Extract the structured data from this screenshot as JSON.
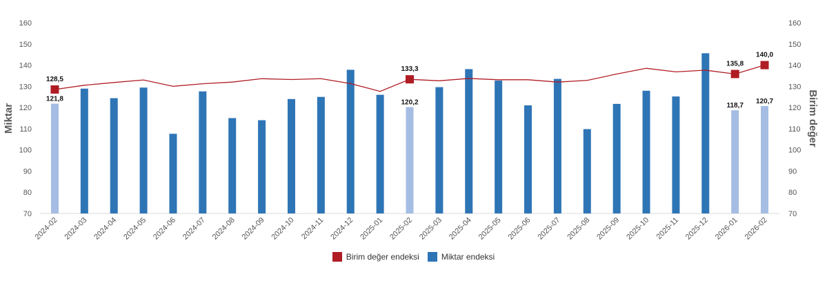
{
  "chart_data": {
    "type": "bar+line",
    "categories": [
      "2024-02",
      "2024-03",
      "2024-04",
      "2024-05",
      "2024-06",
      "2024-07",
      "2024-08",
      "2024-09",
      "2024-10",
      "2024-11",
      "2024-12",
      "2025-01",
      "2025-02",
      "2025-03",
      "2025-04",
      "2025-05",
      "2025-06",
      "2025-07",
      "2025-08",
      "2025-09",
      "2025-10",
      "2025-11",
      "2025-12",
      "2026-01",
      "2026-02"
    ],
    "ylabel": "Miktar",
    "y2label": "Birim değer",
    "ylim": [
      70,
      160
    ],
    "y2lim": [
      70,
      160
    ],
    "yticks": [
      "70",
      "80",
      "90",
      "100",
      "110",
      "120",
      "130",
      "140",
      "150",
      "160"
    ],
    "grid": false,
    "legend_position": "bottom",
    "series": [
      {
        "name": "Miktar endeksi",
        "type": "bar",
        "axis": "left",
        "color": "#2e75b6",
        "highlight_color": "#a5bde3",
        "values": [
          121.8,
          128.9,
          124.4,
          129.4,
          107.6,
          127.6,
          115.0,
          114.0,
          124.0,
          125.0,
          137.8,
          126.0,
          120.2,
          129.6,
          138.1,
          132.7,
          121.0,
          133.5,
          109.8,
          121.7,
          127.9,
          125.2,
          145.6,
          118.7,
          120.7
        ],
        "highlight": [
          true,
          false,
          false,
          false,
          false,
          false,
          false,
          false,
          false,
          false,
          false,
          false,
          true,
          false,
          false,
          false,
          false,
          false,
          false,
          false,
          false,
          false,
          false,
          true,
          true
        ]
      },
      {
        "name": "Birim değer endeksi",
        "type": "line",
        "axis": "right",
        "color": "#b01c24",
        "values": [
          128.5,
          130.5,
          131.8,
          133.0,
          130.0,
          131.2,
          132.0,
          133.6,
          133.2,
          133.6,
          131.3,
          127.6,
          133.3,
          132.6,
          133.7,
          133.1,
          133.1,
          132.0,
          132.8,
          135.8,
          138.5,
          136.8,
          137.6,
          135.8,
          140.0
        ],
        "markers": [
          true,
          false,
          false,
          false,
          false,
          false,
          false,
          false,
          false,
          false,
          false,
          false,
          true,
          false,
          false,
          false,
          false,
          false,
          false,
          false,
          false,
          false,
          false,
          true,
          true
        ]
      }
    ],
    "labels": {
      "bar": {
        "0": "121,8",
        "12": "120,2",
        "23": "118,7",
        "24": "120,7"
      },
      "line": {
        "0": "128,5",
        "12": "133,3",
        "23": "135,8",
        "24": "140,0"
      }
    }
  },
  "legend": {
    "line_label": "Birim değer endeksi",
    "bar_label": "Miktar endeksi"
  }
}
